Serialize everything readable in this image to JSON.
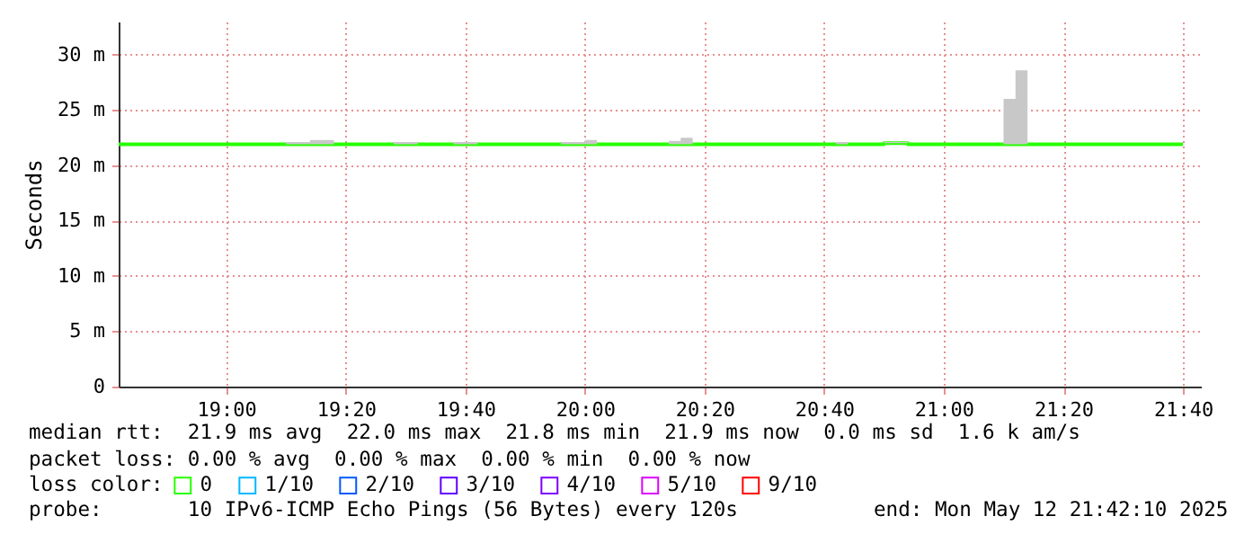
{
  "chart_data": {
    "type": "step",
    "ylabel": "Seconds",
    "legend_title": "loss color:",
    "legend": "bottom",
    "grid": true,
    "xlim": [
      "2025-05-12T18:42",
      "2025-05-12T21:43"
    ],
    "xticks": [
      {
        "value": "2025-05-12T19:00",
        "label": "19:00"
      },
      {
        "value": "2025-05-12T19:20",
        "label": "19:20"
      },
      {
        "value": "2025-05-12T19:40",
        "label": "19:40"
      },
      {
        "value": "2025-05-12T20:00",
        "label": "20:00"
      },
      {
        "value": "2025-05-12T20:20",
        "label": "20:20"
      },
      {
        "value": "2025-05-12T20:40",
        "label": "20:40"
      },
      {
        "value": "2025-05-12T21:00",
        "label": "21:00"
      },
      {
        "value": "2025-05-12T21:20",
        "label": "21:20"
      },
      {
        "value": "2025-05-12T21:40",
        "label": "21:40"
      }
    ],
    "ylim": [
      0,
      33
    ],
    "yticks": [
      {
        "value": 0,
        "label": "0"
      },
      {
        "value": 5,
        "label": "5 m"
      },
      {
        "value": 10,
        "label": "10 m"
      },
      {
        "value": 15,
        "label": "15 m"
      },
      {
        "value": 20,
        "label": "20 m"
      },
      {
        "value": 25,
        "label": "25 m"
      },
      {
        "value": 30,
        "label": "30 m"
      }
    ],
    "series": [
      {
        "name": "0",
        "color": "#26ff00",
        "x": [
          "2025-05-12T18:42",
          "2025-05-12T19:10",
          "2025-05-12T19:14",
          "2025-05-12T19:18",
          "2025-05-12T19:28",
          "2025-05-12T19:32",
          "2025-05-12T19:38",
          "2025-05-12T19:42",
          "2025-05-12T19:56",
          "2025-05-12T20:00",
          "2025-05-12T20:02",
          "2025-05-12T20:14",
          "2025-05-12T20:16",
          "2025-05-12T20:18",
          "2025-05-12T20:42",
          "2025-05-12T20:44",
          "2025-05-12T20:50",
          "2025-05-12T20:54",
          "2025-05-12T21:10",
          "2025-05-12T21:12",
          "2025-05-12T21:14",
          "2025-05-12T21:40"
        ],
        "values": [
          21.9,
          21.9,
          21.9,
          21.9,
          21.9,
          21.9,
          21.9,
          21.9,
          21.9,
          21.9,
          21.9,
          21.9,
          21.9,
          21.9,
          21.9,
          21.9,
          22.0,
          21.9,
          21.9,
          21.9,
          21.9,
          21.9
        ],
        "lower": [
          21.9,
          21.9,
          21.9,
          21.9,
          21.9,
          21.9,
          21.9,
          21.9,
          21.9,
          21.9,
          21.9,
          21.9,
          21.9,
          21.9,
          21.9,
          21.9,
          22.0,
          21.9,
          21.9,
          21.9,
          21.9,
          21.9
        ],
        "upper": [
          21.9,
          22.1,
          22.3,
          21.9,
          22.1,
          21.9,
          22.1,
          21.9,
          22.1,
          22.3,
          21.9,
          22.2,
          22.5,
          21.9,
          22.1,
          21.9,
          22.1,
          21.9,
          26.0,
          28.6,
          21.9,
          21.9
        ]
      },
      {
        "name": "1/10",
        "color": "#00b8ff"
      },
      {
        "name": "2/10",
        "color": "#0059ff"
      },
      {
        "name": "3/10",
        "color": "#5e00ff"
      },
      {
        "name": "4/10",
        "color": "#7e00ff"
      },
      {
        "name": "5/10",
        "color": "#dd00ff"
      },
      {
        "name": "9/10",
        "color": "#ff0000"
      }
    ],
    "annotations": [
      "median rtt:  21.9 ms avg  22.0 ms max  21.8 ms min  21.9 ms now  0.0 ms sd  1.6 k am/s",
      "packet loss: 0.00 % avg  0.00 % max  0.00 % min  0.00 % now",
      "probe:       10 IPv6-ICMP Echo Pings (56 Bytes) every 120s",
      "end: Mon May 12 21:42:10 2025"
    ]
  }
}
